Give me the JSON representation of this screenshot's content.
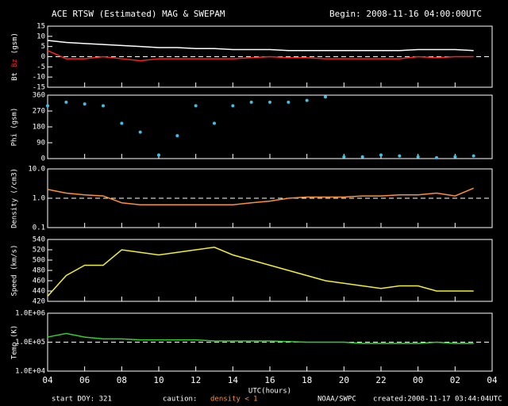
{
  "header": {
    "title": "ACE RTSW (Estimated) MAG & SWEPAM",
    "begin": "Begin: 2008-11-16 04:00:00UTC"
  },
  "footer": {
    "start": "start DOY: 321",
    "caution": "caution:",
    "caution_note": "density < 1",
    "source": "NOAA/SWPC",
    "created": "created:2008-11-17 03:44:04UTC"
  },
  "chart_data": [
    {
      "type": "line",
      "ylabel": "(gsm)",
      "xlim": [
        4,
        28
      ],
      "ylim": [
        -15,
        15
      ],
      "yticks": [
        -15,
        -10,
        -5,
        0,
        5,
        10,
        15
      ],
      "reference_line": 0,
      "x": [
        4,
        5,
        6,
        7,
        8,
        9,
        10,
        11,
        12,
        13,
        14,
        15,
        16,
        17,
        18,
        19,
        20,
        21,
        22,
        23,
        24,
        25,
        26,
        27
      ],
      "series": [
        {
          "name": "Bt",
          "color": "#ffffff",
          "values": [
            8,
            7,
            6.5,
            6,
            5.5,
            5,
            4.5,
            4.5,
            4,
            4,
            3.5,
            3.5,
            3.5,
            3,
            3,
            3,
            3,
            3,
            3,
            3,
            3.5,
            3.5,
            3.5,
            3
          ]
        },
        {
          "name": "Bz",
          "color": "#ff2020",
          "values": [
            3,
            -1,
            -1,
            0,
            -1,
            -2,
            -1,
            -1,
            -1,
            -1,
            -1,
            -0.5,
            0,
            -0.5,
            -0.5,
            -1,
            -1,
            -1,
            -1,
            -1,
            0,
            -0.5,
            0,
            0
          ]
        }
      ]
    },
    {
      "type": "scatter",
      "ylabel": "Phi (gsm)",
      "xlim": [
        4,
        28
      ],
      "ylim": [
        0,
        360
      ],
      "yticks": [
        0,
        90,
        180,
        270,
        360
      ],
      "x": [
        4,
        5,
        6,
        7,
        8,
        9,
        10,
        11,
        12,
        13,
        14,
        15,
        16,
        17,
        18,
        19,
        20,
        21,
        22,
        23,
        24,
        25,
        26,
        27
      ],
      "series": [
        {
          "name": "Phi",
          "color": "#40c0e0",
          "values": [
            300,
            320,
            310,
            300,
            200,
            150,
            20,
            130,
            300,
            200,
            300,
            320,
            320,
            320,
            330,
            350,
            10,
            10,
            20,
            15,
            10,
            5,
            10,
            15
          ]
        }
      ]
    },
    {
      "type": "line",
      "ylabel": "Density (/cm3)",
      "log": true,
      "xlim": [
        4,
        28
      ],
      "ylim": [
        0.1,
        10
      ],
      "yticks": [
        0.1,
        {
          "value": 1,
          "label": "1.0"
        },
        {
          "value": 10,
          "label": "10.0"
        }
      ],
      "reference_line": 1,
      "x": [
        4,
        5,
        6,
        7,
        8,
        9,
        10,
        11,
        12,
        13,
        14,
        15,
        16,
        17,
        18,
        19,
        20,
        21,
        22,
        23,
        24,
        25,
        26,
        27
      ],
      "series": [
        {
          "name": "Density",
          "color": "#ff9030",
          "values": [
            2,
            1.5,
            1.3,
            1.2,
            0.7,
            0.6,
            0.6,
            0.6,
            0.6,
            0.6,
            0.6,
            0.7,
            0.8,
            1,
            1.1,
            1.1,
            1.1,
            1.2,
            1.2,
            1.3,
            1.3,
            1.5,
            1.2,
            2.2
          ]
        }
      ]
    },
    {
      "type": "line",
      "ylabel": "Speed (km/s)",
      "xlim": [
        4,
        28
      ],
      "ylim": [
        420,
        540
      ],
      "yticks": [
        420,
        440,
        460,
        480,
        500,
        520,
        540
      ],
      "x": [
        4,
        5,
        6,
        7,
        8,
        9,
        10,
        11,
        12,
        13,
        14,
        15,
        16,
        17,
        18,
        19,
        20,
        21,
        22,
        23,
        24,
        25,
        26,
        27
      ],
      "series": [
        {
          "name": "Speed",
          "color": "#f0f030",
          "values": [
            430,
            470,
            490,
            490,
            520,
            515,
            510,
            515,
            520,
            525,
            510,
            500,
            490,
            480,
            470,
            460,
            455,
            450,
            445,
            450,
            450,
            440,
            440,
            440
          ]
        }
      ]
    },
    {
      "type": "line",
      "ylabel": "Temp (K)",
      "xlabel": "UTC(hours)",
      "log": true,
      "xlim": [
        4,
        28
      ],
      "ylim": [
        10000,
        1000000
      ],
      "yticks": [
        {
          "value": 10000,
          "label": "1.0E+04"
        },
        {
          "value": 100000,
          "label": "1.0E+05"
        },
        {
          "value": 1000000,
          "label": "1.0E+06"
        }
      ],
      "reference_line": 100000,
      "xticks": [
        {
          "value": 4,
          "label": "04"
        },
        {
          "value": 6,
          "label": "06"
        },
        {
          "value": 8,
          "label": "08"
        },
        10,
        12,
        14,
        16,
        18,
        20,
        22,
        {
          "value": 24,
          "label": "00"
        },
        {
          "value": 26,
          "label": "02"
        },
        {
          "value": 28,
          "label": "04"
        }
      ],
      "x": [
        4,
        5,
        6,
        7,
        8,
        9,
        10,
        11,
        12,
        13,
        14,
        15,
        16,
        17,
        18,
        19,
        20,
        21,
        22,
        23,
        24,
        25,
        26,
        27
      ],
      "series": [
        {
          "name": "Temp",
          "color": "#30d030",
          "values": [
            150000,
            200000,
            150000,
            130000,
            130000,
            120000,
            120000,
            120000,
            120000,
            110000,
            110000,
            110000,
            110000,
            105000,
            100000,
            100000,
            100000,
            90000,
            90000,
            90000,
            90000,
            100000,
            90000,
            90000
          ]
        }
      ]
    }
  ]
}
